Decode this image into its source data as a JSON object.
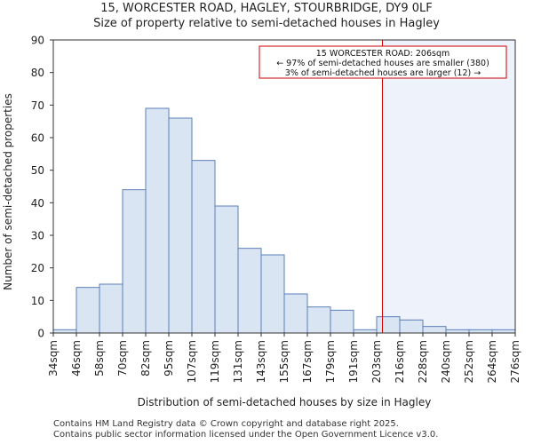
{
  "chart_data": {
    "type": "bar",
    "title": "15, WORCESTER ROAD, HAGLEY, STOURBRIDGE, DY9 0LF",
    "subtitle": "Size of property relative to semi-detached houses in Hagley",
    "xlabel": "Distribution of semi-detached houses by size in Hagley",
    "ylabel": "Number of semi-detached properties",
    "ylim": [
      0,
      90
    ],
    "yticks": [
      0,
      10,
      20,
      30,
      40,
      50,
      60,
      70,
      80,
      90
    ],
    "tick_labels": [
      "34sqm",
      "46sqm",
      "58sqm",
      "70sqm",
      "82sqm",
      "95sqm",
      "107sqm",
      "119sqm",
      "131sqm",
      "143sqm",
      "155sqm",
      "167sqm",
      "179sqm",
      "191sqm",
      "203sqm",
      "216sqm",
      "228sqm",
      "240sqm",
      "252sqm",
      "264sqm",
      "276sqm"
    ],
    "values": [
      1,
      14,
      15,
      44,
      69,
      66,
      53,
      39,
      26,
      24,
      12,
      8,
      7,
      1,
      5,
      4,
      2,
      1,
      1,
      1
    ],
    "marker": {
      "value_sqm": 206,
      "bin_position": 14.25,
      "color": "#cc0000"
    },
    "bar_fill": "#dae5f4",
    "bar_stroke": "#5a7fb8",
    "highlight_fill": "#eef2fb",
    "annotation": {
      "line1": "15 WORCESTER ROAD: 206sqm",
      "line2": "← 97% of semi-detached houses are smaller (380)",
      "line3": "3% of semi-detached houses are larger (12) →"
    }
  },
  "footer": {
    "line1": "Contains HM Land Registry data © Crown copyright and database right 2025.",
    "line2": "Contains public sector information licensed under the Open Government Licence v3.0."
  }
}
